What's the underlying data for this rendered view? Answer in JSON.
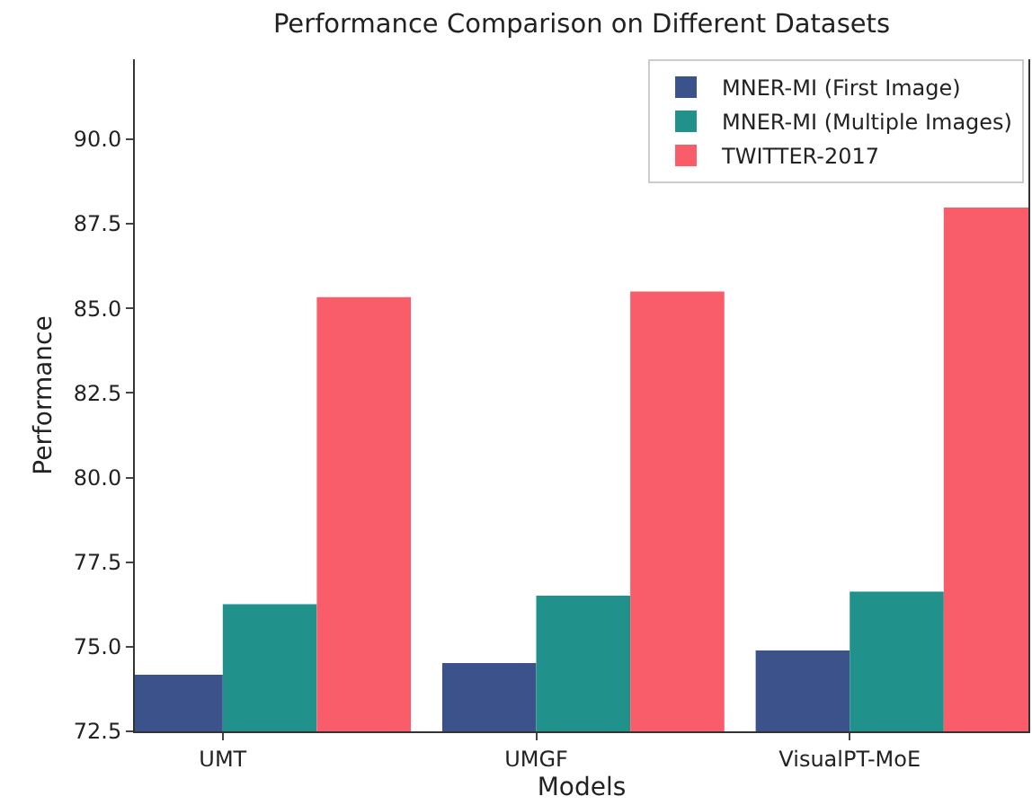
{
  "chart_data": {
    "type": "bar",
    "title": "Performance Comparison on Different Datasets",
    "xlabel": "Models",
    "ylabel": "Performance",
    "categories": [
      "UMT",
      "UMGF",
      "VisualPT-MoE"
    ],
    "series": [
      {
        "name": "MNER-MI (First Image)",
        "color": "#3b528b",
        "values": [
          74.17,
          74.52,
          74.89
        ]
      },
      {
        "name": "MNER-MI (Multiple Images)",
        "color": "#21918c",
        "values": [
          76.26,
          76.51,
          76.63
        ]
      },
      {
        "name": "TWITTER-2017",
        "color": "#f95d6a",
        "values": [
          85.33,
          85.5,
          87.98
        ]
      }
    ],
    "ylim": [
      72.5,
      92.36
    ],
    "yticks": [
      {
        "value": 72.5,
        "label": "72.5"
      },
      {
        "value": 75,
        "label": "75.0"
      },
      {
        "value": 77.5,
        "label": "77.5"
      },
      {
        "value": 80,
        "label": "80.0"
      },
      {
        "value": 82.5,
        "label": "82.5"
      },
      {
        "value": 85,
        "label": "85.0"
      },
      {
        "value": 87.5,
        "label": "87.5"
      },
      {
        "value": 90,
        "label": "90.0"
      }
    ],
    "grid": false,
    "legend": "top right"
  }
}
